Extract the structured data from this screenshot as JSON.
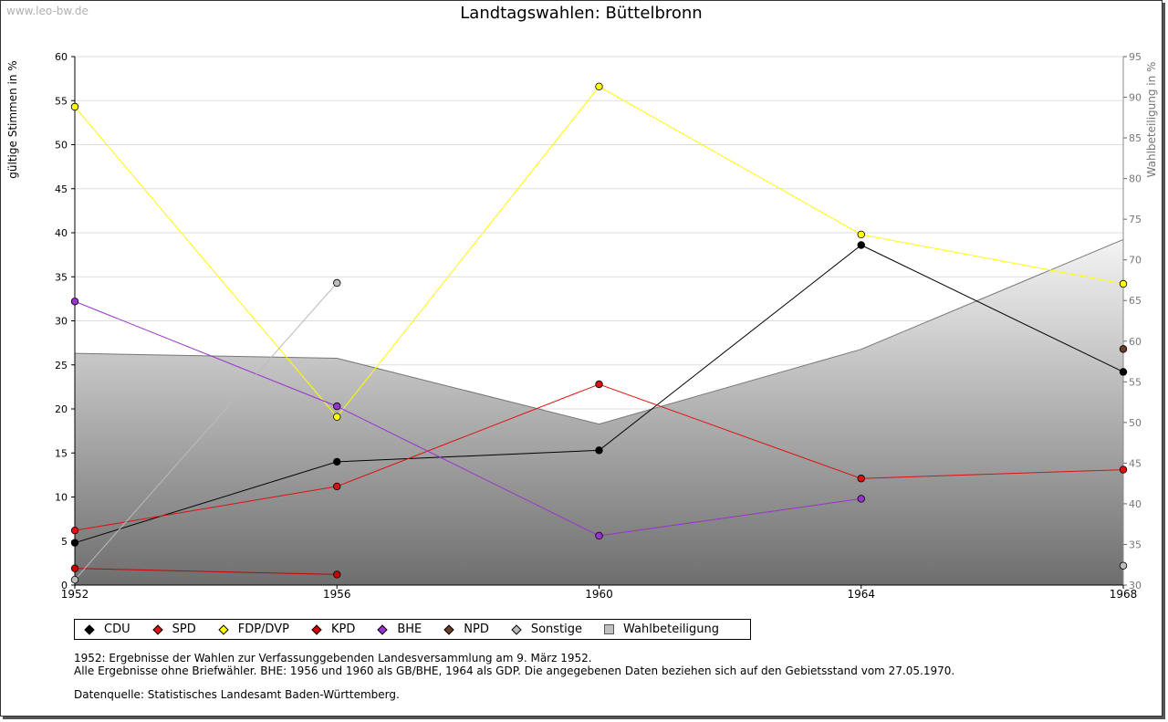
{
  "watermark": "www.leo-bw.de",
  "title": "Landtagswahlen: Büttelbronn",
  "ylabel_left": "gültige Stimmen in %",
  "ylabel_right": "Wahlbeteiligung in %",
  "notes": {
    "line1": "1952: Ergebnisse der Wahlen zur Verfassunggebenden Landesversammlung am 9. März 1952.",
    "line2": "Alle Ergebnisse ohne Briefwähler. BHE: 1956 und 1960 als GB/BHE, 1964 als GDP. Die angegebenen Daten beziehen sich auf den Gebietsstand vom 27.05.1970.",
    "line3": "Datenquelle: Statistisches Landesamt Baden-Württemberg."
  },
  "legend": [
    {
      "label": "CDU",
      "color": "#000000"
    },
    {
      "label": "SPD",
      "color": "#dd1111"
    },
    {
      "label": "FDP/DVP",
      "color": "#ffff00"
    },
    {
      "label": "KPD",
      "color": "#cc0000"
    },
    {
      "label": "BHE",
      "color": "#9933cc"
    },
    {
      "label": "NPD",
      "color": "#6b3e26"
    },
    {
      "label": "Sonstige",
      "color": "#bbbbbb"
    },
    {
      "label": "Wahlbeteiligung",
      "color": "#c0c0c0"
    }
  ],
  "chart_data": {
    "type": "line",
    "x": [
      1952,
      1956,
      1960,
      1964,
      1968
    ],
    "x_ticks": [
      "1952",
      "1956",
      "1960",
      "1964",
      "1968"
    ],
    "ylim_left": [
      0,
      60
    ],
    "yticks_left": [
      0,
      5,
      10,
      15,
      20,
      25,
      30,
      35,
      40,
      45,
      50,
      55,
      60
    ],
    "ylim_right": [
      30,
      95
    ],
    "yticks_right": [
      30,
      35,
      40,
      45,
      50,
      55,
      60,
      65,
      70,
      75,
      80,
      85,
      90,
      95
    ],
    "grid": true,
    "legend_position": "bottom",
    "series": [
      {
        "name": "CDU",
        "color": "#000000",
        "line_color": "#000000",
        "values": [
          4.8,
          14.0,
          15.3,
          38.6,
          24.2
        ]
      },
      {
        "name": "SPD",
        "color": "#dd1111",
        "line_color": "#dd1111",
        "values": [
          6.2,
          11.2,
          22.8,
          12.1,
          13.1
        ]
      },
      {
        "name": "FDP/DVP",
        "color": "#ffff00",
        "line_color": "#ffff00",
        "values": [
          54.3,
          19.1,
          56.6,
          39.8,
          34.2
        ]
      },
      {
        "name": "KPD",
        "color": "#cc0000",
        "line_color": "#cc0000",
        "values": [
          1.9,
          1.2,
          null,
          null,
          null
        ]
      },
      {
        "name": "BHE",
        "color": "#9933cc",
        "line_color": "#9933cc",
        "values": [
          32.2,
          20.3,
          5.6,
          9.8,
          null
        ]
      },
      {
        "name": "NPD",
        "color": "#6b3e26",
        "line_color": "#6b3e26",
        "values": [
          null,
          null,
          null,
          null,
          26.8
        ]
      },
      {
        "name": "Sonstige",
        "color": "#bbbbbb",
        "line_color": "#bbbbbb",
        "values": [
          0.6,
          34.3,
          null,
          null,
          2.2
        ]
      }
    ],
    "area_series": {
      "name": "Wahlbeteiligung",
      "axis": "right",
      "values": [
        58.5,
        57.9,
        49.8,
        59.0,
        72.5
      ]
    }
  }
}
